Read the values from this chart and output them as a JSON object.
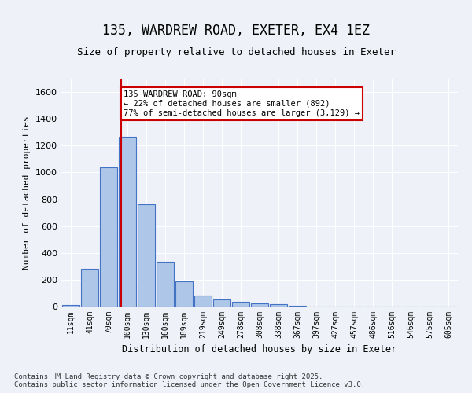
{
  "title_line1": "135, WARDREW ROAD, EXETER, EX4 1EZ",
  "title_line2": "Size of property relative to detached houses in Exeter",
  "xlabel": "Distribution of detached houses by size in Exeter",
  "ylabel": "Number of detached properties",
  "footnote": "Contains HM Land Registry data © Crown copyright and database right 2025.\nContains public sector information licensed under the Open Government Licence v3.0.",
  "bins": [
    "11sqm",
    "41sqm",
    "70sqm",
    "100sqm",
    "130sqm",
    "160sqm",
    "189sqm",
    "219sqm",
    "249sqm",
    "278sqm",
    "308sqm",
    "338sqm",
    "367sqm",
    "397sqm",
    "427sqm",
    "457sqm",
    "486sqm",
    "516sqm",
    "546sqm",
    "575sqm",
    "605sqm"
  ],
  "bar_values": [
    10,
    280,
    1040,
    1265,
    765,
    335,
    185,
    80,
    50,
    37,
    22,
    15,
    5,
    0,
    0,
    0,
    0,
    0,
    0,
    0,
    0
  ],
  "bar_color": "#aec6e8",
  "bar_edge_color": "#4472c4",
  "ylim": [
    0,
    1700
  ],
  "yticks": [
    0,
    200,
    400,
    600,
    800,
    1000,
    1200,
    1400,
    1600
  ],
  "property_line_x": 2.65,
  "annotation_text": "135 WARDREW ROAD: 90sqm\n← 22% of detached houses are smaller (892)\n77% of semi-detached houses are larger (3,129) →",
  "background_color": "#eef2f8",
  "grid_color": "#ffffff",
  "red_color": "#cc0000"
}
